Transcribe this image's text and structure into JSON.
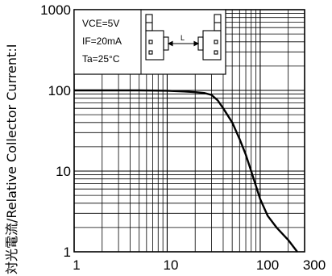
{
  "chart_data": {
    "type": "line",
    "title": "",
    "xlabel": "",
    "ylabel": "対光電流/Relative Collector Current:I",
    "xscale": "log",
    "yscale": "log",
    "xlim": [
      1,
      300
    ],
    "ylim": [
      1,
      1000
    ],
    "grid": true,
    "x_tick_labels": [
      "1",
      "10",
      "100",
      "300"
    ],
    "y_tick_labels": [
      "1",
      "10",
      "100",
      "1000"
    ],
    "series": [
      {
        "x": [
          1,
          2,
          5,
          10,
          15,
          20,
          25,
          30,
          35,
          40,
          50,
          60,
          70,
          80,
          100,
          120,
          150,
          200,
          250
        ],
        "y": [
          100,
          100,
          100,
          99,
          97,
          95,
          93,
          88,
          75,
          60,
          40,
          25,
          16,
          10,
          4.5,
          2.8,
          2,
          1.4,
          1
        ]
      }
    ],
    "conditions": {
      "vce": "VCE=5V",
      "if": "IF=20mA",
      "ta": "Ta=25°C"
    },
    "inset_label": "L"
  }
}
